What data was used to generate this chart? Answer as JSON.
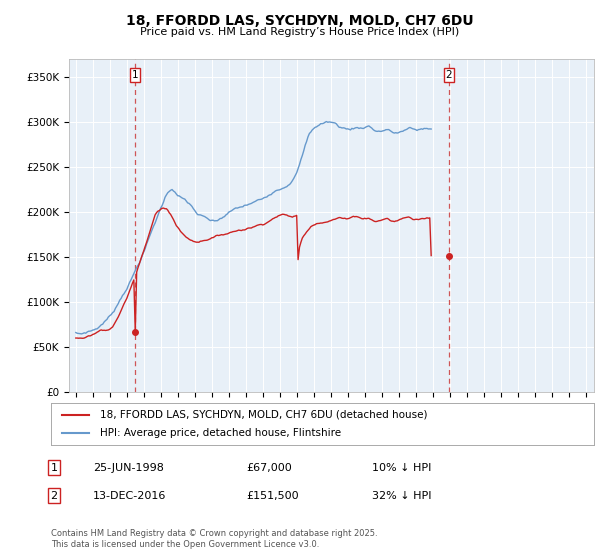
{
  "title1": "18, FFORDD LAS, SYCHDYN, MOLD, CH7 6DU",
  "title2": "Price paid vs. HM Land Registry’s House Price Index (HPI)",
  "legend1": "18, FFORDD LAS, SYCHDYN, MOLD, CH7 6DU (detached house)",
  "legend2": "HPI: Average price, detached house, Flintshire",
  "footnote": "Contains HM Land Registry data © Crown copyright and database right 2025.\nThis data is licensed under the Open Government Licence v3.0.",
  "transactions": [
    {
      "num": 1,
      "date": "25-JUN-1998",
      "price": "£67,000",
      "pct": "10% ↓ HPI",
      "year": 1998.47
    },
    {
      "num": 2,
      "date": "13-DEC-2016",
      "price": "£151,500",
      "pct": "32% ↓ HPI",
      "year": 2016.95
    }
  ],
  "t1_price_val": 67000,
  "t2_price_val": 151500,
  "ylim": [
    0,
    370000
  ],
  "xlim_start": 1994.6,
  "xlim_end": 2025.5,
  "yticks": [
    0,
    50000,
    100000,
    150000,
    200000,
    250000,
    300000,
    350000
  ],
  "ytick_labels": [
    "£0",
    "£50K",
    "£100K",
    "£150K",
    "£200K",
    "£250K",
    "£300K",
    "£350K"
  ],
  "bg_color": "#ffffff",
  "plot_bg_color": "#e8f0f8",
  "grid_color": "#ffffff",
  "red_color": "#cc2222",
  "blue_color": "#6699cc",
  "dashed_color": "#cc4444",
  "box_border_color": "#cc2222",
  "hpi_data": [
    65000,
    64500,
    64200,
    63800,
    64000,
    64500,
    65200,
    65800,
    66500,
    67000,
    67500,
    68000,
    68500,
    69000,
    70000,
    71000,
    72000,
    73500,
    75000,
    76500,
    78000,
    79500,
    81000,
    82500,
    84000,
    86000,
    88500,
    91000,
    94000,
    97000,
    100000,
    103000,
    106000,
    109000,
    112000,
    115000,
    118000,
    121000,
    124000,
    127000,
    130000,
    133500,
    137000,
    140500,
    144000,
    147500,
    151000,
    154500,
    158000,
    162000,
    166000,
    170000,
    174000,
    178000,
    182000,
    186000,
    190000,
    194000,
    198000,
    202000,
    206000,
    210000,
    214000,
    218000,
    221000,
    224000,
    226000,
    228000,
    229000,
    228000,
    226000,
    224000,
    222000,
    221000,
    219000,
    218000,
    217000,
    216000,
    214000,
    213000,
    212000,
    210000,
    208000,
    206000,
    204000,
    202000,
    200000,
    199000,
    198000,
    197000,
    196000,
    195000,
    194000,
    193000,
    192000,
    191000,
    190000,
    189500,
    189000,
    189500,
    190000,
    191000,
    192000,
    193000,
    194000,
    195000,
    196000,
    197000,
    198000,
    199000,
    200000,
    201000,
    201500,
    202000,
    202500,
    203000,
    203500,
    204000,
    204500,
    205000,
    205500,
    206000,
    206500,
    207000,
    207500,
    208000,
    208500,
    209000,
    209500,
    210000,
    210500,
    211000,
    212000,
    213000,
    214000,
    215500,
    217000,
    218500,
    220000,
    221500,
    223000,
    224000,
    225000,
    226000,
    227000,
    228000,
    229000,
    230000,
    231000,
    232500,
    234000,
    236000,
    238000,
    240000,
    242000,
    244000,
    248000,
    252000,
    256000,
    261000,
    266000,
    271000,
    276000,
    281000,
    286000,
    289000,
    291000,
    293000,
    295000,
    297000,
    298000,
    299000,
    300000,
    301000,
    301500,
    302000,
    302500,
    303000,
    303000,
    303000,
    303000,
    302500,
    302000,
    301000,
    300000,
    299000,
    298000,
    297500,
    297000,
    296500,
    296000,
    295500,
    295000,
    295000,
    295500,
    296000,
    296500,
    297000,
    297000,
    297000,
    297000,
    297000,
    297500,
    298000,
    299000,
    299500,
    300000,
    300000,
    299000,
    298000,
    297000,
    296000,
    295000,
    295000,
    295000,
    295000,
    295500,
    296000,
    296500,
    297000,
    297000,
    296000,
    295000,
    294000,
    293500,
    293000,
    293000,
    293000,
    293500,
    294000,
    294500,
    295000,
    295500,
    296000,
    296500,
    297000,
    297000,
    296500,
    296000,
    295500,
    295000,
    295200,
    295400,
    295600,
    295800,
    296000,
    296200,
    296400,
    296600,
    296800,
    297000,
    297000
  ],
  "red_data": [
    60000,
    59800,
    59600,
    59400,
    59500,
    59700,
    60000,
    60500,
    61000,
    61500,
    62000,
    62500,
    63000,
    63500,
    64500,
    65500,
    66500,
    67500,
    68000,
    67000,
    67000,
    67000,
    67000,
    67000,
    68000,
    69500,
    71500,
    74000,
    77000,
    80500,
    84000,
    87500,
    91000,
    94500,
    98000,
    101500,
    105000,
    109000,
    113000,
    117000,
    121000,
    125000,
    129000,
    133500,
    138000,
    142500,
    147000,
    151500,
    156000,
    161000,
    166000,
    171000,
    176000,
    181000,
    186000,
    191000,
    196000,
    199000,
    201000,
    202000,
    203000,
    204000,
    204500,
    204000,
    203000,
    201500,
    199000,
    197000,
    194000,
    191000,
    188000,
    185000,
    183000,
    181000,
    179000,
    177000,
    175000,
    173500,
    172000,
    171000,
    170000,
    169500,
    169000,
    168500,
    168000,
    168000,
    168000,
    168000,
    168500,
    169000,
    170000,
    170500,
    171000,
    171500,
    172000,
    172500,
    173000,
    173500,
    173500,
    174000,
    174500,
    175000,
    175500,
    176000,
    176500,
    177000,
    177500,
    178000,
    178500,
    179000,
    179500,
    180000,
    180500,
    181000,
    181500,
    182000,
    182000,
    182500,
    183000,
    183500,
    184000,
    184500,
    185000,
    185500,
    186000,
    186500,
    187000,
    187500,
    188000,
    188500,
    189000,
    189500,
    190000,
    191000,
    192000,
    193000,
    194000,
    195000,
    196000,
    197000,
    198000,
    199000,
    200000,
    201000,
    201500,
    202000,
    202000,
    201500,
    201000,
    200500,
    200000,
    199500,
    199000,
    199000,
    199500,
    200000,
    200500,
    151500,
    165000,
    170000,
    175000,
    178000,
    180000,
    182000,
    184000,
    186000,
    188000,
    190000,
    191000,
    192000,
    193000,
    193500,
    194000,
    194500,
    195000,
    195500,
    196000,
    196500,
    197000,
    197500,
    198000,
    198500,
    199000,
    199500,
    200000,
    200500,
    201000,
    201000,
    200500,
    200000,
    199500,
    199000,
    199000,
    199500,
    200000,
    200500,
    201000,
    201500,
    202000,
    202000,
    201500,
    201000,
    200500,
    200000,
    200000,
    200500,
    201000,
    201000,
    200000,
    199500,
    199000,
    198500,
    198000,
    198000,
    198500,
    199000,
    199500,
    200000,
    200500,
    201000,
    201500,
    200500,
    199500,
    198500,
    198000,
    198000,
    198500,
    199000,
    199500,
    200000,
    200500,
    201000,
    201500,
    202000,
    202500,
    203000,
    202500,
    201500,
    200500,
    200000,
    200000,
    200200,
    200400,
    200600,
    200800,
    201000,
    201200,
    201400,
    201600,
    201800,
    202000,
    202000
  ]
}
